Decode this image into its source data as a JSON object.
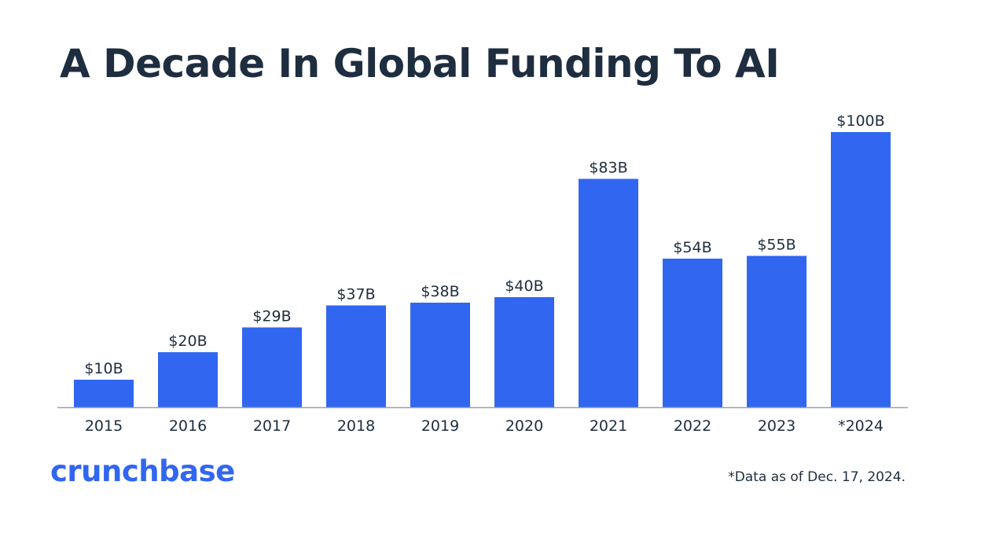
{
  "colors": {
    "bar": "#3166f1",
    "title": "#1e2d3f",
    "text": "#1e2d3f",
    "axis": "#9aa1a9",
    "brand": "#3166f1"
  },
  "logo": "crunchbase",
  "footnote": "*Data as of Dec. 17, 2024.",
  "chart_data": {
    "type": "bar",
    "title": "A Decade In Global Funding To AI",
    "xlabel": "",
    "ylabel": "",
    "categories": [
      "2015",
      "2016",
      "2017",
      "2018",
      "2019",
      "2020",
      "2021",
      "2022",
      "2023",
      "*2024"
    ],
    "values": [
      10,
      20,
      29,
      37,
      38,
      40,
      83,
      54,
      55,
      100
    ],
    "data_labels": [
      "$10B",
      "$20B",
      "$29B",
      "$37B",
      "$38B",
      "$40B",
      "$83B",
      "$54B",
      "$55B",
      "$100B"
    ],
    "ylim": [
      0,
      100
    ],
    "unit": "USD billions",
    "grid": false,
    "legend": "none"
  }
}
